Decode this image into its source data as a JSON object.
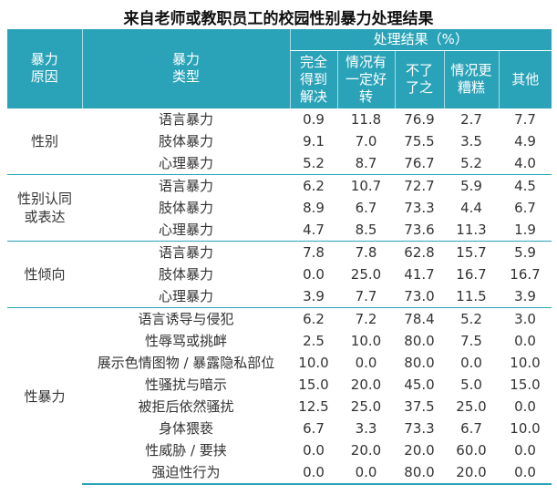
{
  "title": "来自老师或教职员工的校园性别暴力处理结果",
  "table": {
    "header": {
      "cause": "暴力原因",
      "type": "暴力类型",
      "result": "处理结果（%）",
      "columns": [
        "完全得到解决",
        "情况有一定好转",
        "不了了之",
        "情况更糟糕",
        "其他"
      ]
    },
    "groups": [
      {
        "cause": "性别",
        "rows": [
          {
            "type": "语言暴力",
            "values": [
              "0.9",
              "11.8",
              "76.9",
              "2.7",
              "7.7"
            ]
          },
          {
            "type": "肢体暴力",
            "values": [
              "9.1",
              "7.0",
              "75.5",
              "3.5",
              "4.9"
            ]
          },
          {
            "type": "心理暴力",
            "values": [
              "5.2",
              "8.7",
              "76.7",
              "5.2",
              "4.0"
            ]
          }
        ]
      },
      {
        "cause": "性别认同或表达",
        "rows": [
          {
            "type": "语言暴力",
            "values": [
              "6.2",
              "10.7",
              "72.7",
              "5.9",
              "4.5"
            ]
          },
          {
            "type": "肢体暴力",
            "values": [
              "8.9",
              "6.7",
              "73.3",
              "4.4",
              "6.7"
            ]
          },
          {
            "type": "心理暴力",
            "values": [
              "4.7",
              "8.5",
              "73.6",
              "11.3",
              "1.9"
            ]
          }
        ]
      },
      {
        "cause": "性倾向",
        "rows": [
          {
            "type": "语言暴力",
            "values": [
              "7.8",
              "7.8",
              "62.8",
              "15.7",
              "5.9"
            ]
          },
          {
            "type": "肢体暴力",
            "values": [
              "0.0",
              "25.0",
              "41.7",
              "16.7",
              "16.7"
            ]
          },
          {
            "type": "心理暴力",
            "values": [
              "3.9",
              "7.7",
              "73.0",
              "11.5",
              "3.9"
            ]
          }
        ]
      },
      {
        "cause": "性暴力",
        "rows": [
          {
            "type": "语言诱导与侵犯",
            "values": [
              "6.2",
              "7.2",
              "78.4",
              "5.2",
              "3.0"
            ]
          },
          {
            "type": "性辱骂或挑衅",
            "values": [
              "2.5",
              "10.0",
              "80.0",
              "7.5",
              "0.0"
            ]
          },
          {
            "type": "展示色情图物 / 暴露隐私部位",
            "values": [
              "10.0",
              "0.0",
              "80.0",
              "0.0",
              "10.0"
            ]
          },
          {
            "type": "性骚扰与暗示",
            "values": [
              "15.0",
              "20.0",
              "45.0",
              "5.0",
              "15.0"
            ]
          },
          {
            "type": "被拒后依然骚扰",
            "values": [
              "12.5",
              "25.0",
              "37.5",
              "25.0",
              "0.0"
            ]
          },
          {
            "type": "身体猥亵",
            "values": [
              "6.7",
              "3.3",
              "73.3",
              "6.7",
              "10.0"
            ]
          },
          {
            "type": "性威胁 / 要挟",
            "values": [
              "0.0",
              "20.0",
              "20.0",
              "60.0",
              "0.0"
            ]
          },
          {
            "type": "强迫性行为",
            "values": [
              "0.0",
              "0.0",
              "80.0",
              "20.0",
              "0.0"
            ]
          }
        ]
      }
    ]
  }
}
